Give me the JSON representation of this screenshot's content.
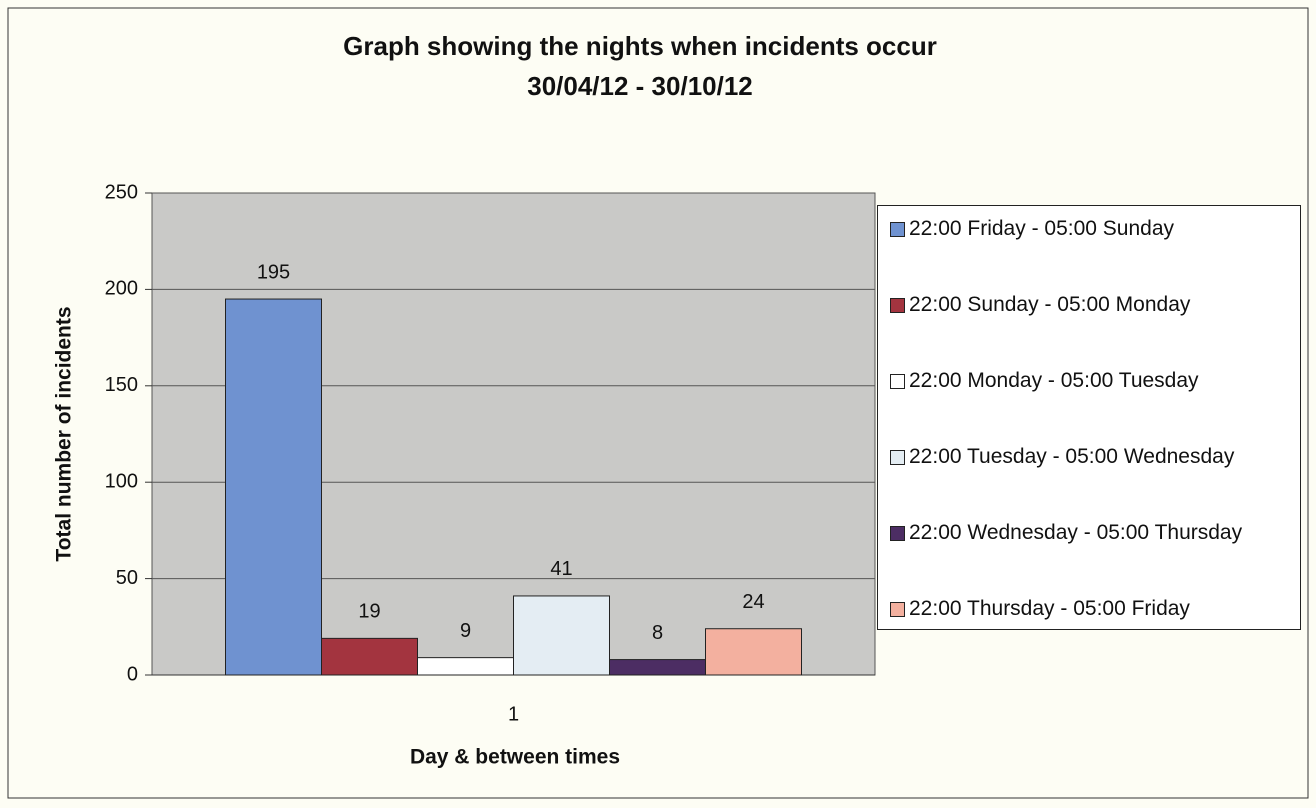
{
  "chart_data": {
    "type": "bar",
    "title": "Graph showing the nights when incidents occur",
    "subtitle": "30/04/12 - 30/10/12",
    "x_label": "Day & between times",
    "y_label": "Total number of incidents",
    "categories": [
      "1"
    ],
    "series": [
      {
        "name": "22:00 Friday - 05:00 Sunday",
        "color": "#6f92d0",
        "values": [
          195
        ]
      },
      {
        "name": "22:00 Sunday - 05:00 Monday",
        "color": "#a3343f",
        "values": [
          19
        ]
      },
      {
        "name": "22:00 Monday - 05:00 Tuesday",
        "color": "#ffffff",
        "values": [
          9
        ]
      },
      {
        "name": "22:00 Tuesday - 05:00 Wednesday",
        "color": "#e4edf3",
        "values": [
          41
        ]
      },
      {
        "name": "22:00 Wednesday - 05:00 Thursday",
        "color": "#4c2d63",
        "values": [
          8
        ]
      },
      {
        "name": "22:00 Thursday - 05:00 Friday",
        "color": "#f3b09f",
        "values": [
          24
        ]
      }
    ],
    "ylim": [
      0,
      250
    ],
    "yticks": [
      0,
      50,
      100,
      150,
      200,
      250
    ],
    "grid": true,
    "legend": "right"
  }
}
